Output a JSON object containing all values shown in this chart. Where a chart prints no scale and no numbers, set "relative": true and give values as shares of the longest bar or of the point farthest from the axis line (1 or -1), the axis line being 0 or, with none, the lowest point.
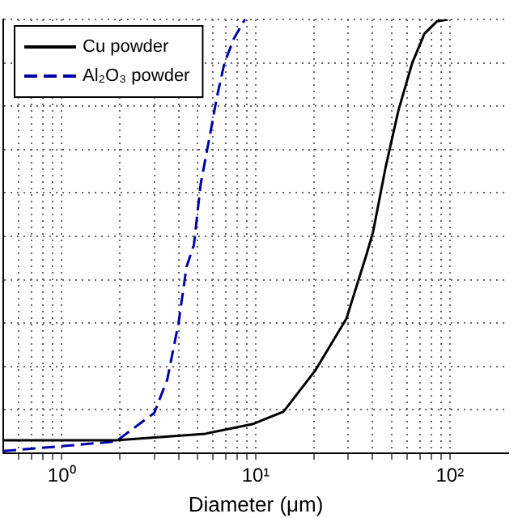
{
  "chart_data": {
    "type": "line",
    "relative": true,
    "xlabel": "Diameter (μm)",
    "log": "x",
    "grid": true,
    "legend": "top left",
    "xlim": [
      0.5,
      200
    ],
    "xticks": [
      {
        "value": 0.6,
        "label": null
      },
      {
        "value": 0.7,
        "label": null
      },
      {
        "value": 0.8,
        "label": null
      },
      {
        "value": 0.9,
        "label": null
      },
      {
        "value": 1,
        "label": "10⁰"
      },
      {
        "value": 2,
        "label": null
      },
      {
        "value": 3,
        "label": null
      },
      {
        "value": 4,
        "label": null
      },
      {
        "value": 5,
        "label": null
      },
      {
        "value": 6,
        "label": null
      },
      {
        "value": 7,
        "label": null
      },
      {
        "value": 8,
        "label": null
      },
      {
        "value": 9,
        "label": null
      },
      {
        "value": 10,
        "label": "10¹"
      },
      {
        "value": 20,
        "label": null
      },
      {
        "value": 30,
        "label": null
      },
      {
        "value": 40,
        "label": null
      },
      {
        "value": 50,
        "label": null
      },
      {
        "value": 60,
        "label": null
      },
      {
        "value": 70,
        "label": null
      },
      {
        "value": 80,
        "label": null
      },
      {
        "value": 90,
        "label": null
      },
      {
        "value": 100,
        "label": "10²"
      }
    ],
    "series": [
      {
        "name": "Cu powder",
        "color": "#000000",
        "line_style": "solid",
        "x": [
          0.5,
          1.9,
          5.5,
          9.6,
          13.9,
          20.2,
          29.3,
          37.3,
          40.2,
          46.7,
          54.3,
          64,
          74,
          86,
          98
        ],
        "values": [
          0.03,
          0.03,
          0.045,
          0.067,
          0.096,
          0.19,
          0.31,
          0.46,
          0.51,
          0.66,
          0.79,
          0.9,
          0.967,
          0.996,
          1
        ]
      },
      {
        "name": "Al₂O₃ powder",
        "color": "#0000aa",
        "line_style": "dashed",
        "x": [
          0.5,
          1.9,
          3,
          3.5,
          4,
          4.4,
          4.8,
          5.2,
          5.9,
          6.3,
          6.9,
          7.7,
          8.8
        ],
        "values": [
          0.005,
          0.027,
          0.093,
          0.17,
          0.3,
          0.43,
          0.48,
          0.62,
          0.75,
          0.82,
          0.9,
          0.955,
          1
        ]
      }
    ]
  }
}
